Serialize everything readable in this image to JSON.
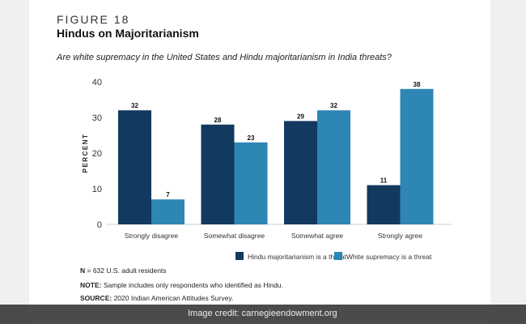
{
  "figure_label": "FIGURE 18",
  "title": "Hindus on Majoritarianism",
  "question": "Are white supremacy in the United States and Hindu majoritarianism in India threats?",
  "chart_data": {
    "type": "bar",
    "ylabel": "PERCENT",
    "ylim": [
      0,
      40
    ],
    "yticks": [
      0,
      10,
      20,
      30,
      40
    ],
    "categories": [
      "Strongly disagree",
      "Somewhat disagree",
      "Somewhat agree",
      "Strongly agree"
    ],
    "series": [
      {
        "name": "Hindu majoritarianism is a threat",
        "values": [
          32,
          28,
          29,
          11
        ],
        "color": "#12395f"
      },
      {
        "name": "White supremacy is a threat",
        "values": [
          7,
          23,
          32,
          38
        ],
        "color": "#2e86b5"
      }
    ],
    "legend_position": "bottom-right",
    "grid": false
  },
  "footer": {
    "n_label": "N",
    "n_text": " = 632 U.S. adult residents",
    "note_label": "NOTE:",
    "note_text": " Sample includes only respondents who identified as Hindu.",
    "source_label": "SOURCE:",
    "source_text": " 2020 Indian American Attitudes Survey."
  },
  "credit": "Image credit: carnegieendowment.org"
}
